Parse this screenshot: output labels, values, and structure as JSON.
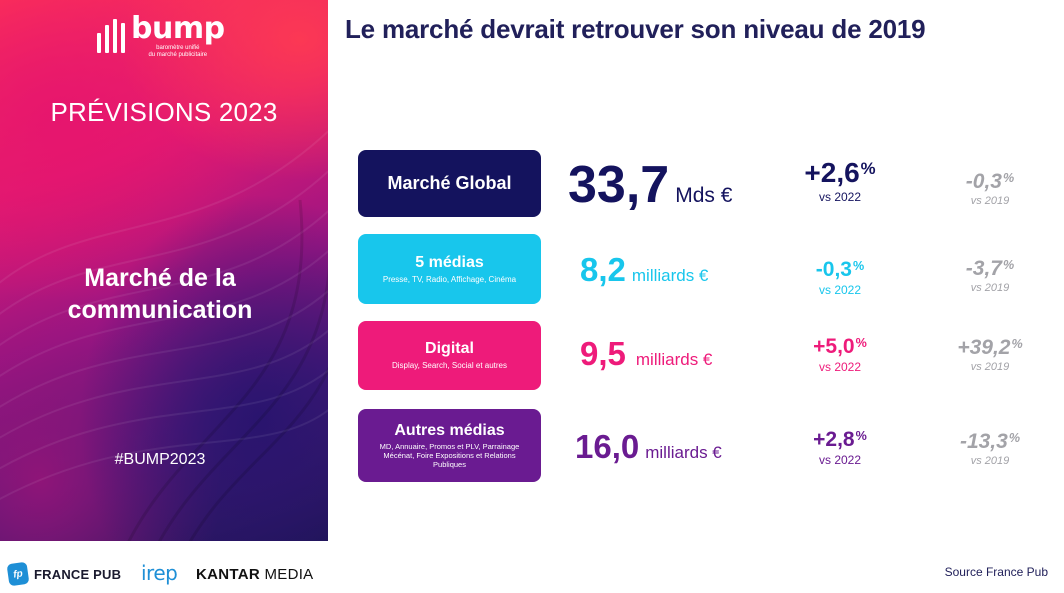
{
  "brand": {
    "logo_word": "bump",
    "logo_sub_line1": "baromètre unifié",
    "logo_sub_line2": "du marché publicitaire"
  },
  "left": {
    "previsions": "PRÉVISIONS 2023",
    "marche_line1": "Marché de la",
    "marche_line2": "communication",
    "hashtag": "#BUMP2023"
  },
  "title": "Le marché devrait retrouver son niveau de 2019",
  "rows": [
    {
      "label": "Marché Global",
      "sub": "",
      "value": "33,7",
      "unit": "Mds €",
      "vs2022_value": "+2,6",
      "vs2022_label": "vs 2022",
      "vs2019_value": "-0,3",
      "vs2019_label": "vs 2019",
      "color": "#14135e"
    },
    {
      "label": "5 médias",
      "sub": "Presse, TV, Radio, Affichage, Cinéma",
      "value": "8,2",
      "unit": "milliards €",
      "vs2022_value": "-0,3",
      "vs2022_label": "vs 2022",
      "vs2019_value": "-3,7",
      "vs2019_label": "vs 2019",
      "color": "#18c6ec"
    },
    {
      "label": "Digital",
      "sub": "Display, Search, Social et autres",
      "value": "9,5",
      "unit": "milliards €",
      "vs2022_value": "+5,0",
      "vs2022_label": "vs 2022",
      "vs2019_value": "+39,2",
      "vs2019_label": "vs 2019",
      "color": "#ee1b7a"
    },
    {
      "label": "Autres médias",
      "sub": "MD, Annuaire, Promos et PLV, Parrainage Mécénat, Foire Expositions et Relations Publiques",
      "value": "16,0",
      "unit": "milliards €",
      "vs2022_value": "+2,8",
      "vs2022_label": "vs 2022",
      "vs2019_value": "-13,3",
      "vs2019_label": "vs 2019",
      "color": "#6a1b91"
    }
  ],
  "percent_sign": "%",
  "footer": {
    "fp_badge": "fp",
    "france_pub": "FRANCE PUB",
    "irep": "irep",
    "kantar_bold": "KANTAR",
    "kantar_rest": "MEDIA",
    "source": "Source France Pub"
  }
}
